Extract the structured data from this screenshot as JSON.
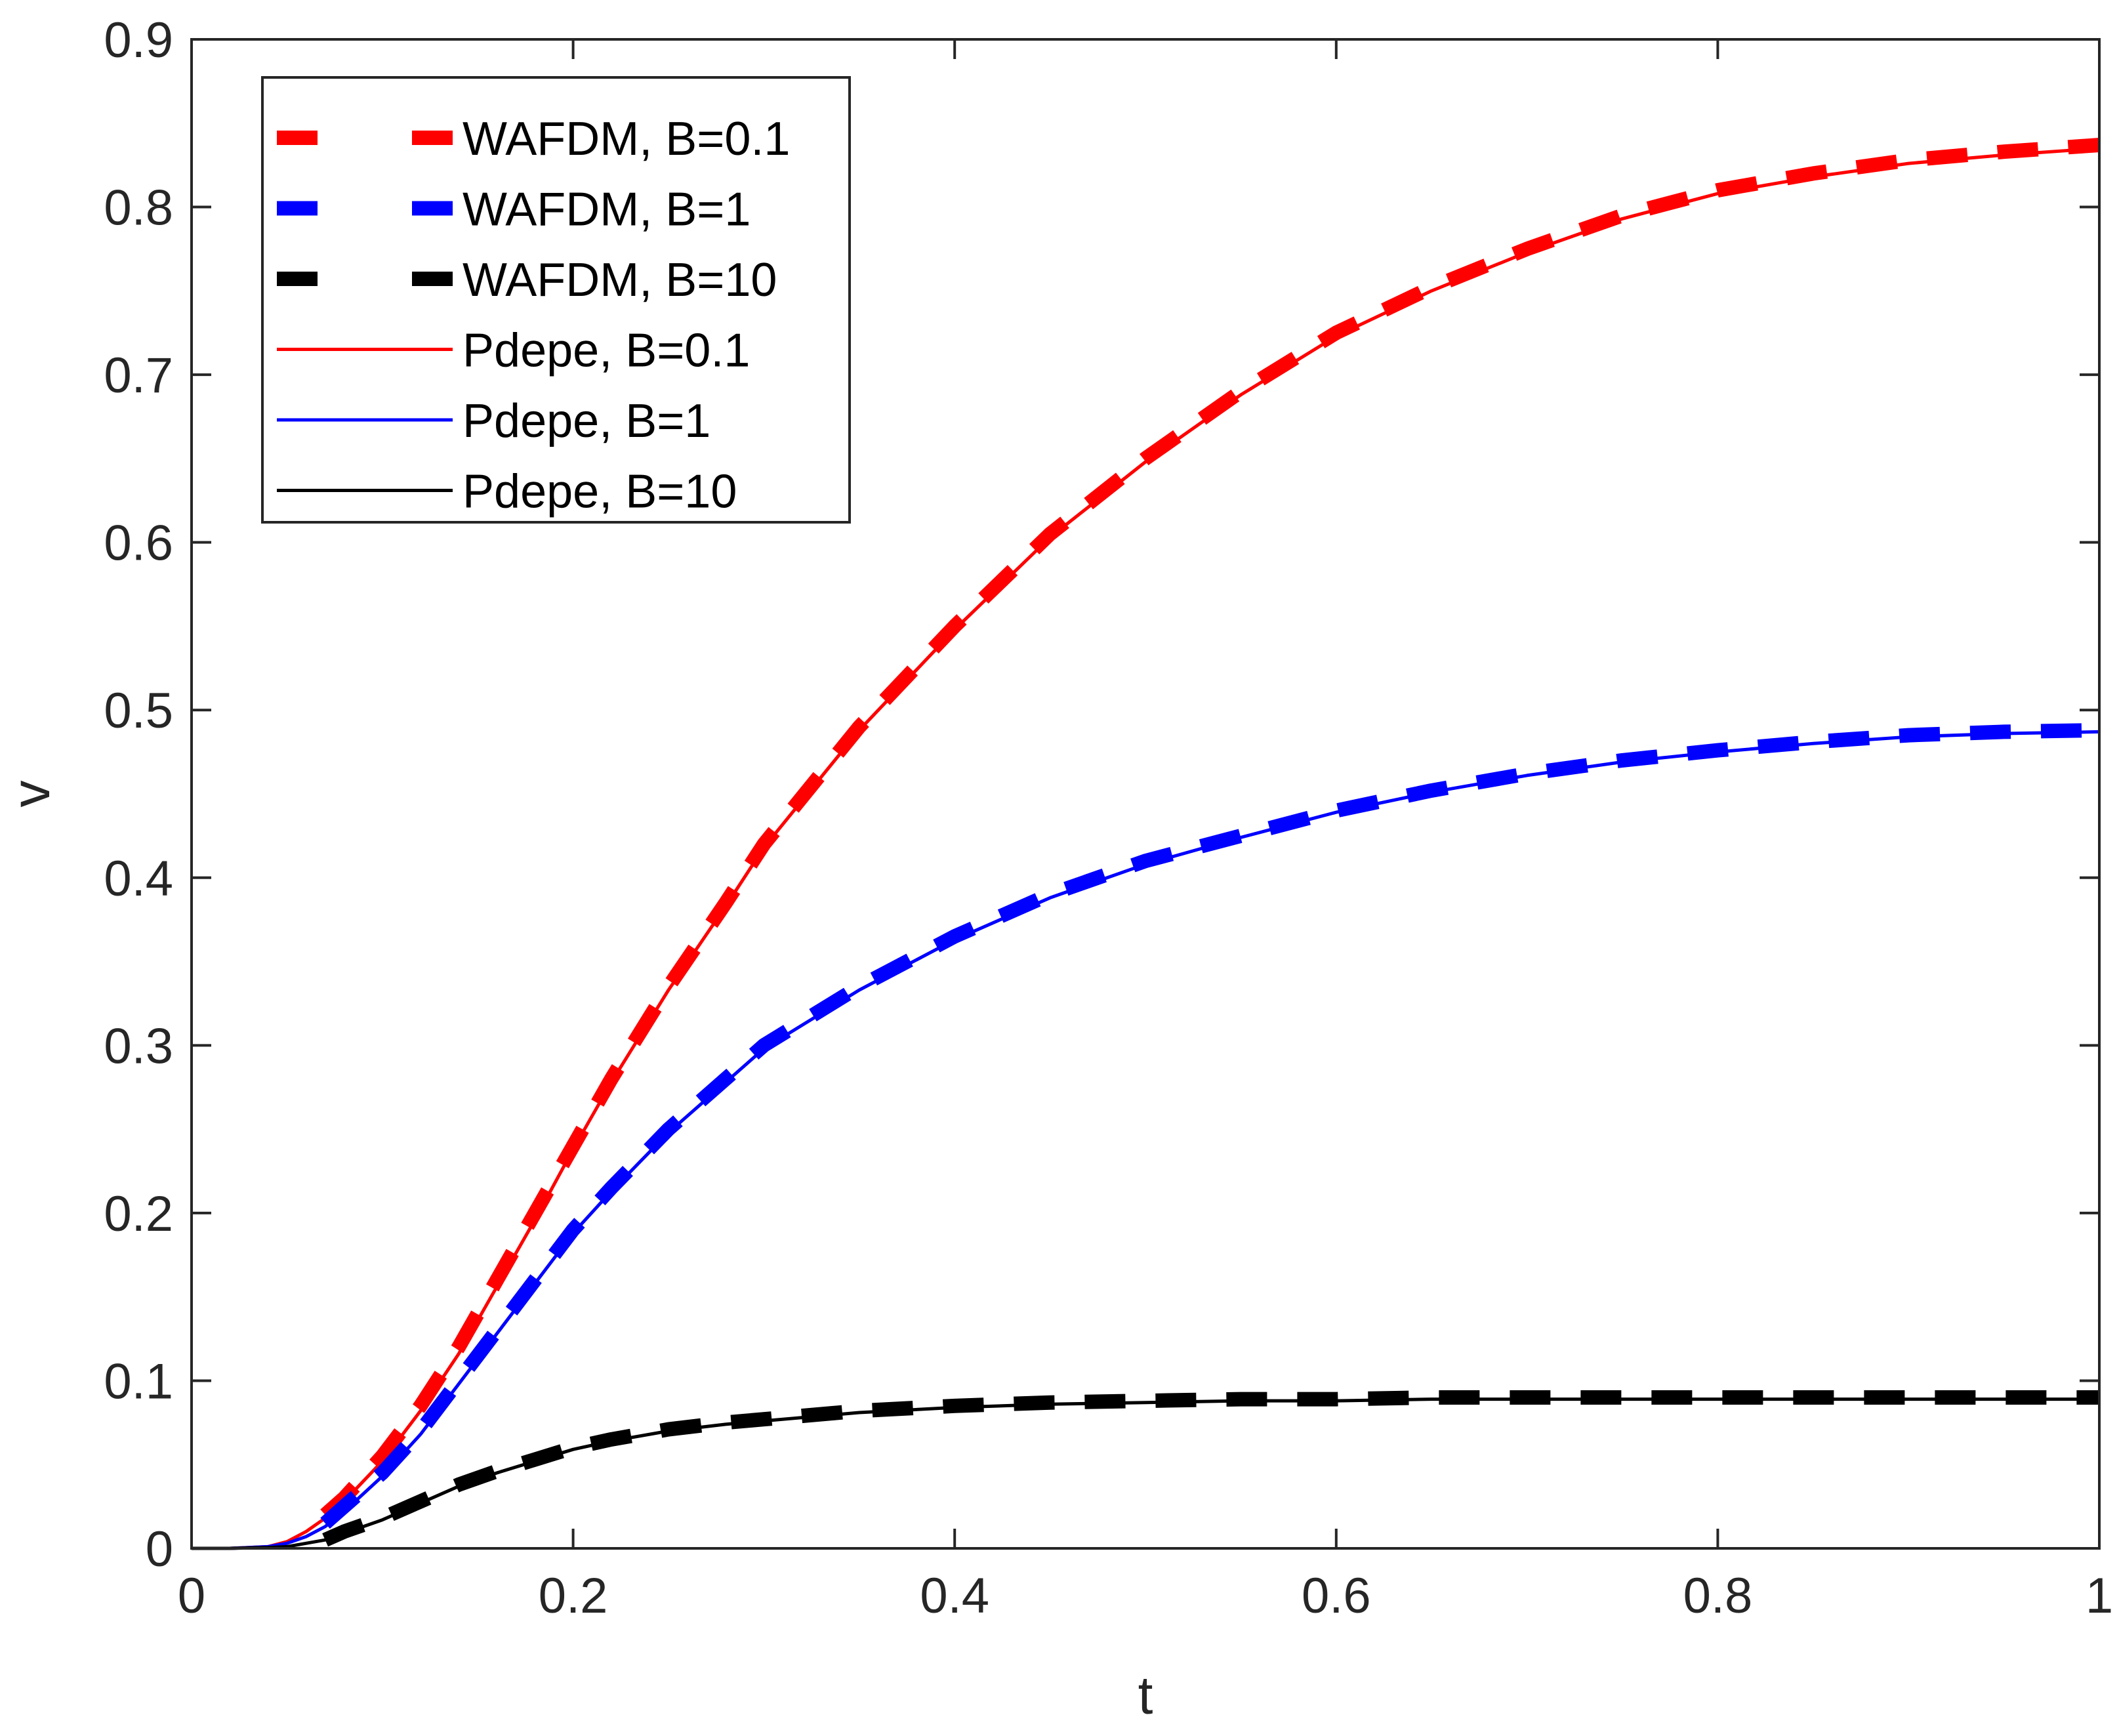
{
  "chart_data": {
    "type": "line",
    "title": "",
    "xlabel": "t",
    "ylabel": "v",
    "xlim": [
      0,
      1
    ],
    "ylim": [
      0,
      0.9
    ],
    "xticks": [
      0,
      0.2,
      0.4,
      0.6,
      0.8,
      1
    ],
    "xtick_labels": [
      "0",
      "0.2",
      "0.4",
      "0.6",
      "0.8",
      "1"
    ],
    "yticks": [
      0,
      0.1,
      0.2,
      0.3,
      0.4,
      0.5,
      0.6,
      0.7,
      0.8,
      0.9
    ],
    "ytick_labels": [
      "0",
      "0.1",
      "0.2",
      "0.3",
      "0.4",
      "0.5",
      "0.6",
      "0.7",
      "0.8",
      "0.9"
    ],
    "grid": false,
    "legend_position": "top-left",
    "series": [
      {
        "name": "WAFDM, B=0.1",
        "style": "dashed",
        "color": "#ff0000",
        "x": [
          0.07,
          0.08,
          0.1,
          0.12,
          0.14,
          0.16,
          0.18,
          0.2,
          0.22,
          0.25,
          0.28,
          0.3,
          0.35,
          0.4,
          0.45,
          0.5,
          0.55,
          0.6,
          0.65,
          0.7,
          0.75,
          0.8,
          0.85,
          0.9,
          0.95,
          1.0
        ],
        "y": [
          0.02,
          0.03,
          0.055,
          0.085,
          0.12,
          0.16,
          0.2,
          0.24,
          0.28,
          0.335,
          0.385,
          0.42,
          0.49,
          0.55,
          0.605,
          0.65,
          0.69,
          0.725,
          0.752,
          0.775,
          0.795,
          0.81,
          0.82,
          0.828,
          0.833,
          0.837
        ]
      },
      {
        "name": "WAFDM, B=1",
        "style": "dashed",
        "color": "#0000ff",
        "x": [
          0.07,
          0.08,
          0.1,
          0.12,
          0.14,
          0.16,
          0.18,
          0.2,
          0.22,
          0.25,
          0.28,
          0.3,
          0.35,
          0.4,
          0.45,
          0.5,
          0.55,
          0.6,
          0.65,
          0.7,
          0.75,
          0.8,
          0.85,
          0.9,
          0.95,
          1.0
        ],
        "y": [
          0.015,
          0.025,
          0.045,
          0.07,
          0.1,
          0.13,
          0.16,
          0.19,
          0.215,
          0.25,
          0.28,
          0.3,
          0.335,
          0.365,
          0.39,
          0.41,
          0.425,
          0.44,
          0.452,
          0.462,
          0.47,
          0.476,
          0.481,
          0.485,
          0.487,
          0.488
        ]
      },
      {
        "name": "WAFDM, B=10",
        "style": "dashed",
        "color": "#000000",
        "x": [
          0.07,
          0.08,
          0.1,
          0.12,
          0.14,
          0.16,
          0.18,
          0.2,
          0.22,
          0.25,
          0.28,
          0.3,
          0.35,
          0.4,
          0.45,
          0.5,
          0.55,
          0.6,
          0.65,
          0.7,
          0.75,
          0.8,
          0.85,
          0.9,
          0.95,
          1.0
        ],
        "y": [
          0.005,
          0.01,
          0.018,
          0.028,
          0.038,
          0.046,
          0.053,
          0.06,
          0.065,
          0.071,
          0.075,
          0.077,
          0.082,
          0.085,
          0.087,
          0.088,
          0.089,
          0.089,
          0.09,
          0.09,
          0.09,
          0.09,
          0.09,
          0.09,
          0.09,
          0.09
        ]
      },
      {
        "name": "Pdepe, B=0.1",
        "style": "solid",
        "color": "#ff0000",
        "x": [
          0,
          0.02,
          0.04,
          0.05,
          0.06,
          0.07,
          0.08,
          0.1,
          0.12,
          0.14,
          0.16,
          0.18,
          0.2,
          0.22,
          0.25,
          0.28,
          0.3,
          0.35,
          0.4,
          0.45,
          0.5,
          0.55,
          0.6,
          0.65,
          0.7,
          0.75,
          0.8,
          0.85,
          0.9,
          0.95,
          1.0
        ],
        "y": [
          0,
          0,
          0.001,
          0.004,
          0.01,
          0.018,
          0.028,
          0.052,
          0.082,
          0.116,
          0.156,
          0.196,
          0.238,
          0.278,
          0.333,
          0.383,
          0.418,
          0.488,
          0.548,
          0.603,
          0.648,
          0.688,
          0.723,
          0.75,
          0.773,
          0.793,
          0.808,
          0.818,
          0.826,
          0.831,
          0.835
        ]
      },
      {
        "name": "Pdepe, B=1",
        "style": "solid",
        "color": "#0000ff",
        "x": [
          0,
          0.02,
          0.04,
          0.05,
          0.06,
          0.07,
          0.08,
          0.1,
          0.12,
          0.14,
          0.16,
          0.18,
          0.2,
          0.22,
          0.25,
          0.28,
          0.3,
          0.35,
          0.4,
          0.45,
          0.5,
          0.55,
          0.6,
          0.65,
          0.7,
          0.75,
          0.8,
          0.85,
          0.9,
          0.95,
          1.0
        ],
        "y": [
          0,
          0,
          0.001,
          0.003,
          0.007,
          0.013,
          0.022,
          0.043,
          0.068,
          0.098,
          0.128,
          0.158,
          0.188,
          0.213,
          0.248,
          0.278,
          0.298,
          0.333,
          0.363,
          0.388,
          0.408,
          0.424,
          0.439,
          0.451,
          0.461,
          0.469,
          0.475,
          0.48,
          0.484,
          0.486,
          0.487
        ]
      },
      {
        "name": "Pdepe, B=10",
        "style": "solid",
        "color": "#000000",
        "x": [
          0,
          0.02,
          0.04,
          0.05,
          0.06,
          0.07,
          0.08,
          0.1,
          0.12,
          0.14,
          0.16,
          0.18,
          0.2,
          0.22,
          0.25,
          0.28,
          0.3,
          0.35,
          0.4,
          0.45,
          0.5,
          0.55,
          0.6,
          0.65,
          0.7,
          0.75,
          0.8,
          0.85,
          0.9,
          0.95,
          1.0
        ],
        "y": [
          0,
          0,
          0.0005,
          0.001,
          0.003,
          0.005,
          0.009,
          0.017,
          0.027,
          0.037,
          0.045,
          0.052,
          0.059,
          0.064,
          0.07,
          0.074,
          0.076,
          0.081,
          0.084,
          0.086,
          0.087,
          0.088,
          0.088,
          0.089,
          0.089,
          0.089,
          0.089,
          0.089,
          0.089,
          0.089,
          0.089
        ]
      }
    ]
  }
}
